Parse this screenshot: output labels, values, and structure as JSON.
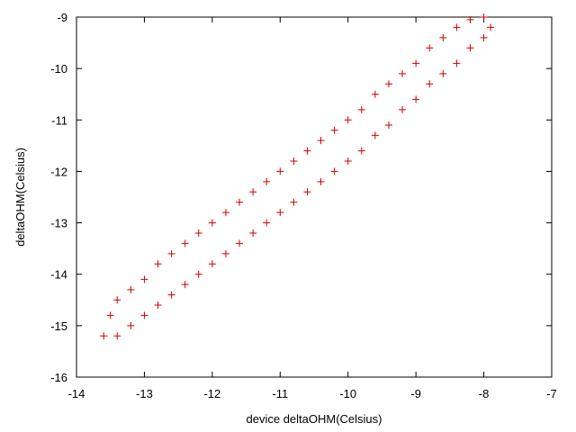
{
  "chart_data": {
    "type": "scatter",
    "x_label": "device deltaOHM(Celsius)",
    "y_label": "deltaOHM(Celsius)",
    "xlim": [
      -14,
      -7
    ],
    "xticks": [
      -14,
      -13,
      -12,
      -11,
      -10,
      -9,
      -8,
      -7
    ],
    "ylim": [
      -16,
      -9
    ],
    "yticks": [
      -16,
      -15,
      -14,
      -13,
      -12,
      -11,
      -10,
      -9
    ],
    "color": "#cc0000",
    "marker": "plus",
    "x": [
      -13.6,
      -13.5,
      -13.4,
      -13.2,
      -13.0,
      -12.8,
      -12.6,
      -12.4,
      -12.2,
      -12.0,
      -11.8,
      -11.6,
      -11.4,
      -11.2,
      -11.0,
      -10.8,
      -10.6,
      -10.4,
      -10.2,
      -10.0,
      -9.8,
      -9.6,
      -9.4,
      -9.2,
      -9.0,
      -8.8,
      -8.6,
      -8.4,
      -8.2,
      -8.0,
      -13.4,
      -13.2,
      -13.0,
      -12.8,
      -12.6,
      -12.4,
      -12.2,
      -12.0,
      -11.8,
      -11.6,
      -11.4,
      -11.2,
      -11.0,
      -10.8,
      -10.6,
      -10.4,
      -10.2,
      -10.0,
      -9.8,
      -9.6,
      -9.4,
      -9.2,
      -9.0,
      -8.8,
      -8.6,
      -8.4,
      -8.2,
      -8.0,
      -7.9
    ],
    "values": [
      -15.2,
      -14.8,
      -14.5,
      -14.3,
      -14.1,
      -13.8,
      -13.6,
      -13.4,
      -13.2,
      -13.0,
      -12.8,
      -12.6,
      -12.4,
      -12.2,
      -12.0,
      -11.8,
      -11.6,
      -11.4,
      -11.2,
      -11.0,
      -10.8,
      -10.5,
      -10.3,
      -10.1,
      -9.9,
      -9.6,
      -9.4,
      -9.2,
      -9.05,
      -9.0,
      -15.2,
      -15.0,
      -14.8,
      -14.6,
      -14.4,
      -14.2,
      -14.0,
      -13.8,
      -13.6,
      -13.4,
      -13.2,
      -13.0,
      -12.8,
      -12.6,
      -12.4,
      -12.2,
      -12.0,
      -11.8,
      -11.6,
      -11.3,
      -11.1,
      -10.8,
      -10.6,
      -10.3,
      -10.1,
      -9.9,
      -9.6,
      -9.4,
      -9.2
    ]
  }
}
